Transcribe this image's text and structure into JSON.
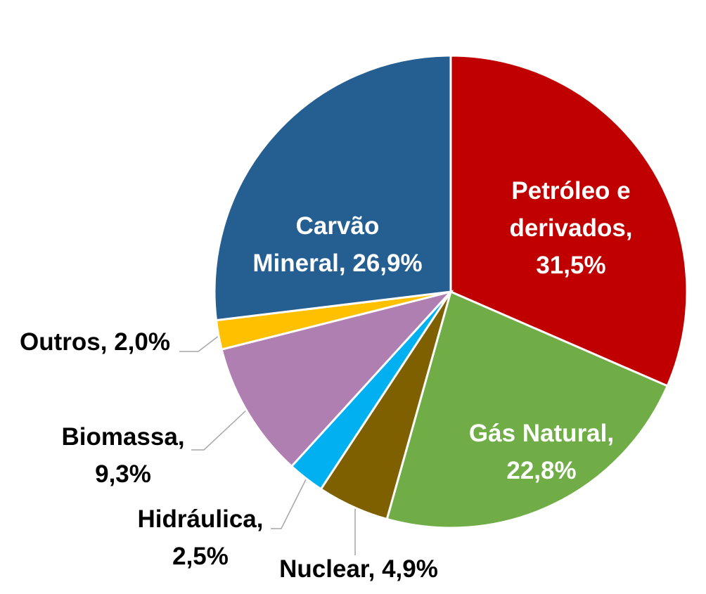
{
  "chart_data": {
    "type": "pie",
    "categories": [
      "Petróleo e derivados,",
      "Gás Natural,",
      "Nuclear,",
      "Hidráulica,",
      "Biomassa,",
      "Outros,",
      "Carvão Mineral,"
    ],
    "values": [
      31.5,
      22.8,
      4.9,
      2.5,
      9.3,
      2.0,
      26.9
    ],
    "value_labels": [
      "31,5%",
      "22,8%",
      "4,9%",
      "2,5%",
      "9,3%",
      "2,0%",
      "26,9%"
    ],
    "colors": [
      "#c00000",
      "#70ad47",
      "#7f6000",
      "#00b0f0",
      "#ae7fb0",
      "#ffc000",
      "#255e91"
    ]
  }
}
